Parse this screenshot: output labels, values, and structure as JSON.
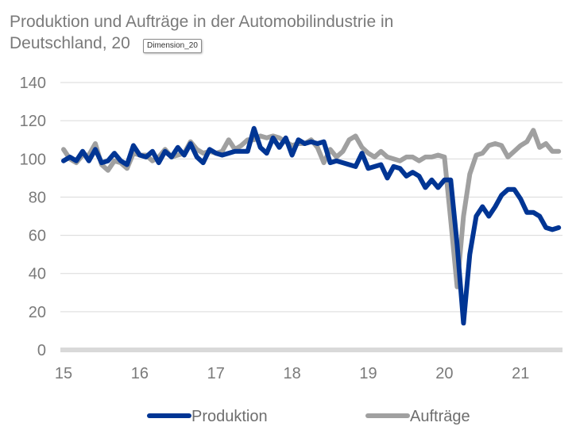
{
  "chart_data": {
    "type": "line",
    "title": "Produktion und Aufträge in der Automobilindustrie in Deutschland, 20",
    "xlabel": "",
    "ylabel": "",
    "ylim": [
      0,
      140
    ],
    "xlim": [
      15,
      21.55
    ],
    "yticks": [
      0,
      20,
      40,
      60,
      80,
      100,
      120,
      140
    ],
    "xticks": [
      {
        "value": 15,
        "label": "15"
      },
      {
        "value": 16,
        "label": "16"
      },
      {
        "value": 17,
        "label": "17"
      },
      {
        "value": 18,
        "label": "18"
      },
      {
        "value": 19,
        "label": "19"
      },
      {
        "value": 20,
        "label": "20"
      },
      {
        "value": 21,
        "label": "21"
      }
    ],
    "grid": true,
    "legend": "bottom",
    "series": [
      {
        "name": "Produktion",
        "color": "#003594",
        "x": [
          15.0,
          15.083,
          15.167,
          15.25,
          15.333,
          15.417,
          15.5,
          15.583,
          15.667,
          15.75,
          15.833,
          15.917,
          16.0,
          16.083,
          16.167,
          16.25,
          16.333,
          16.417,
          16.5,
          16.583,
          16.667,
          16.75,
          16.833,
          16.917,
          17.0,
          17.083,
          17.167,
          17.25,
          17.333,
          17.417,
          17.5,
          17.583,
          17.667,
          17.75,
          17.833,
          17.917,
          18.0,
          18.083,
          18.167,
          18.25,
          18.333,
          18.417,
          18.5,
          18.583,
          18.667,
          18.75,
          18.833,
          18.917,
          19.0,
          19.083,
          19.167,
          19.25,
          19.333,
          19.417,
          19.5,
          19.583,
          19.667,
          19.75,
          19.833,
          19.917,
          20.0,
          20.083,
          20.167,
          20.25,
          20.333,
          20.417,
          20.5,
          20.583,
          20.667,
          20.75,
          20.833,
          20.917,
          21.0,
          21.083,
          21.167,
          21.25,
          21.333,
          21.417,
          21.5
        ],
        "values": [
          99,
          101,
          99,
          104,
          99,
          105,
          98,
          99,
          103,
          99,
          97,
          107,
          102,
          101,
          104,
          98,
          104,
          101,
          106,
          102,
          108,
          101,
          98,
          105,
          103,
          102,
          103,
          104,
          104,
          104,
          116,
          106,
          103,
          111,
          106,
          111,
          102,
          110,
          108,
          109,
          108,
          109,
          98,
          99,
          98,
          97,
          96,
          103,
          95,
          96,
          97,
          90,
          96,
          95,
          91,
          93,
          91,
          85,
          89,
          85,
          89,
          89,
          55,
          14,
          50,
          70,
          75,
          70,
          75,
          81,
          84,
          84,
          79,
          72,
          72,
          70,
          64,
          63,
          64
        ]
      },
      {
        "name": "Aufträge",
        "color": "#a0a0a0",
        "x": [
          15.0,
          15.083,
          15.167,
          15.25,
          15.333,
          15.417,
          15.5,
          15.583,
          15.667,
          15.75,
          15.833,
          15.917,
          16.0,
          16.083,
          16.167,
          16.25,
          16.333,
          16.417,
          16.5,
          16.583,
          16.667,
          16.75,
          16.833,
          16.917,
          17.0,
          17.083,
          17.167,
          17.25,
          17.333,
          17.417,
          17.5,
          17.583,
          17.667,
          17.75,
          17.833,
          17.917,
          18.0,
          18.083,
          18.167,
          18.25,
          18.333,
          18.417,
          18.5,
          18.583,
          18.667,
          18.75,
          18.833,
          18.917,
          19.0,
          19.083,
          19.167,
          19.25,
          19.333,
          19.417,
          19.5,
          19.583,
          19.667,
          19.75,
          19.833,
          19.917,
          20.0,
          20.083,
          20.167,
          20.25,
          20.333,
          20.417,
          20.5,
          20.583,
          20.667,
          20.75,
          20.833,
          20.917,
          21.0,
          21.083,
          21.167,
          21.25,
          21.333,
          21.417,
          21.5
        ],
        "values": [
          105,
          100,
          98,
          102,
          102,
          108,
          97,
          94,
          99,
          98,
          95,
          103,
          102,
          102,
          99,
          101,
          105,
          101,
          102,
          103,
          109,
          105,
          103,
          104,
          103,
          104,
          110,
          105,
          107,
          110,
          110,
          112,
          111,
          112,
          111,
          109,
          107,
          108,
          108,
          110,
          106,
          98,
          105,
          101,
          104,
          110,
          112,
          106,
          103,
          101,
          104,
          101,
          100,
          99,
          101,
          101,
          99,
          101,
          101,
          102,
          101,
          68,
          33,
          70,
          92,
          102,
          103,
          107,
          108,
          107,
          101,
          104,
          107,
          109,
          115,
          106,
          108,
          104,
          104
        ]
      }
    ]
  },
  "tooltip": "Dimension_20"
}
